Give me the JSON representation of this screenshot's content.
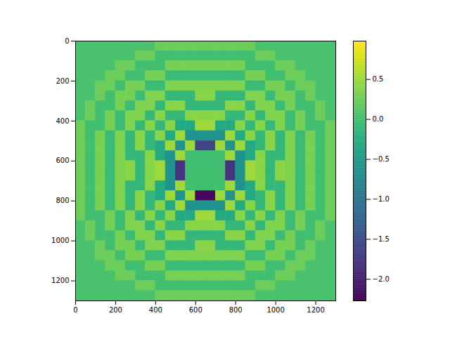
{
  "chart_data": {
    "type": "heatmap",
    "color": "viridis",
    "xlim": [
      0,
      1300
    ],
    "ylim": [
      1300,
      0
    ],
    "xticks": [
      0,
      200,
      400,
      600,
      800,
      1000,
      1200
    ],
    "yticks": [
      0,
      200,
      400,
      600,
      800,
      1000,
      1200
    ],
    "colorbar": {
      "range": [
        -2.27,
        0.98
      ],
      "ticks": [
        {
          "value": -2,
          "label": "−2.0"
        },
        {
          "value": -1.5,
          "label": "−1.5"
        },
        {
          "value": -1,
          "label": "−1.0"
        },
        {
          "value": -0.5,
          "label": "−0.5"
        },
        {
          "value": 0,
          "label": "0.0"
        },
        0.5
      ]
    },
    "cells": [
      [
        0.05,
        0.05,
        0.05,
        0.05,
        0.05,
        0.05,
        0.05,
        0.05,
        0.25,
        0.25,
        0.25,
        0.25,
        0.25,
        0.25,
        0.25,
        0.25,
        0.25,
        0.25,
        0.05,
        0.05,
        0.05,
        0.05,
        0.05,
        0.05,
        0.05,
        0.05
      ],
      [
        0.05,
        0.05,
        0.05,
        0.05,
        0.05,
        0.05,
        0.25,
        0.25,
        0,
        0,
        0,
        0,
        0,
        0,
        0,
        0,
        0,
        0,
        0.25,
        0.25,
        0.05,
        0.05,
        0.05,
        0.05,
        0.05,
        0.05
      ],
      [
        0.05,
        0.05,
        0.05,
        0.05,
        0.25,
        0.25,
        0,
        0,
        0,
        0.3,
        0.3,
        0.3,
        0.3,
        0.3,
        0.3,
        0.3,
        0.3,
        0,
        0,
        0,
        0.25,
        0.25,
        0.05,
        0.05,
        0.05,
        0.05
      ],
      [
        0.05,
        0.05,
        0.05,
        0.25,
        0.25,
        0,
        0,
        0.3,
        0.3,
        -0.05,
        -0.05,
        -0.05,
        -0.05,
        -0.05,
        -0.05,
        -0.05,
        -0.05,
        0.3,
        0.3,
        0,
        0,
        0.25,
        0.25,
        0.05,
        0.05,
        0.05
      ],
      [
        0.05,
        0.05,
        0.25,
        0.25,
        0,
        0.3,
        0.3,
        -0.05,
        -0.05,
        0.35,
        0.35,
        0.35,
        0.35,
        0.35,
        0.35,
        0.35,
        0.35,
        -0.05,
        -0.05,
        0.3,
        0.3,
        0,
        0.25,
        0.25,
        0.05,
        0.05
      ],
      [
        0.05,
        0.05,
        0.25,
        0,
        0.3,
        0.3,
        -0.05,
        0.35,
        0.35,
        -0.1,
        -0.1,
        -0.1,
        0.4,
        0.4,
        -0.1,
        -0.1,
        -0.1,
        0.35,
        0.35,
        -0.05,
        0.3,
        0.3,
        0,
        0.25,
        0.05,
        0.05
      ],
      [
        0.05,
        0.25,
        0,
        0,
        0.3,
        -0.05,
        0.35,
        0.35,
        -0.1,
        0.4,
        0.4,
        -0.1,
        -0.1,
        -0.1,
        -0.1,
        0.4,
        0.4,
        -0.1,
        0.35,
        0.35,
        -0.05,
        0.3,
        0,
        0,
        0.25,
        0.05
      ],
      [
        0.05,
        0.25,
        0,
        0.3,
        -0.05,
        0.35,
        0.35,
        -0.1,
        0.4,
        -0.1,
        -0.1,
        0.4,
        0.4,
        0.4,
        0.4,
        -0.1,
        -0.1,
        0.4,
        -0.1,
        0.35,
        0.35,
        -0.05,
        0.3,
        0,
        0.25,
        0.05
      ],
      [
        0.25,
        0,
        0,
        0.3,
        -0.05,
        0.35,
        -0.1,
        0.4,
        -0.1,
        0.4,
        -0.3,
        -0.3,
        0.5,
        0.5,
        -0.3,
        -0.3,
        0.4,
        -0.1,
        0.4,
        -0.1,
        0.35,
        -0.05,
        0.3,
        0,
        0,
        0.25
      ],
      [
        0.25,
        0,
        0.3,
        -0.05,
        0.35,
        -0.1,
        0.4,
        -0.1,
        0.4,
        -0.3,
        0.5,
        -0.6,
        -0.6,
        -0.6,
        -0.6,
        0.5,
        -0.3,
        0.4,
        -0.1,
        0.4,
        -0.1,
        0.35,
        -0.05,
        0.3,
        0,
        0.25
      ],
      [
        0.25,
        0,
        0.3,
        -0.05,
        0.35,
        -0.1,
        0.4,
        -0.1,
        -0.3,
        0.5,
        -0.6,
        0.5,
        -1.6,
        -1.6,
        0.5,
        -0.6,
        0.5,
        -0.3,
        -0.1,
        0.4,
        -0.1,
        0.35,
        -0.05,
        0.3,
        0,
        0.25
      ],
      [
        0.25,
        0,
        0.3,
        -0.05,
        0.35,
        -0.1,
        -0.1,
        0.4,
        -0.3,
        -0.6,
        0.5,
        0,
        0,
        0,
        0,
        0.5,
        -0.6,
        -0.3,
        0.4,
        -0.1,
        -0.1,
        0.35,
        -0.05,
        0.3,
        0,
        0.25
      ],
      [
        0.25,
        0,
        0.3,
        -0.05,
        0.35,
        0.4,
        -0.1,
        0.4,
        0.5,
        -0.6,
        -1.8,
        0,
        0,
        0,
        0,
        -1.8,
        -0.6,
        0.5,
        0.4,
        -0.1,
        0.4,
        0.35,
        -0.05,
        0.3,
        0,
        0.25
      ],
      [
        0.25,
        0,
        0.3,
        -0.05,
        0.35,
        0.4,
        -0.1,
        0.4,
        0.5,
        -0.6,
        -1.8,
        0,
        0,
        0,
        0,
        -1.8,
        -0.6,
        0.5,
        0.4,
        -0.1,
        0.4,
        0.35,
        -0.05,
        0.3,
        0,
        0.25
      ],
      [
        0.25,
        0,
        0.3,
        -0.05,
        0.35,
        -0.1,
        -0.1,
        0.4,
        -0.3,
        -0.6,
        0.5,
        0,
        0,
        0,
        0,
        0.5,
        -0.6,
        -0.3,
        0.4,
        -0.1,
        -0.1,
        0.35,
        -0.05,
        0.3,
        0,
        0.25
      ],
      [
        0.25,
        0,
        0.3,
        -0.05,
        0.35,
        -0.1,
        0.4,
        -0.1,
        -0.3,
        0.5,
        -0.6,
        0.5,
        -2.2,
        -2.2,
        0.5,
        -0.6,
        0.5,
        -0.3,
        -0.1,
        0.4,
        -0.1,
        0.35,
        -0.05,
        0.3,
        0,
        0.25
      ],
      [
        0.25,
        0,
        0.3,
        -0.05,
        0.35,
        -0.1,
        0.4,
        -0.1,
        0.4,
        -0.3,
        0.5,
        -0.6,
        -0.6,
        -0.6,
        -0.6,
        0.5,
        -0.3,
        0.4,
        -0.1,
        0.4,
        -0.1,
        0.35,
        -0.05,
        0.3,
        0,
        0.25
      ],
      [
        0.25,
        0,
        0,
        0.3,
        -0.05,
        0.35,
        -0.1,
        0.4,
        -0.1,
        0.4,
        -0.3,
        -0.3,
        0.5,
        0.5,
        -0.3,
        -0.3,
        0.4,
        -0.1,
        0.4,
        -0.1,
        0.35,
        -0.05,
        0.3,
        0,
        0,
        0.25
      ],
      [
        0.05,
        0.25,
        0,
        0.3,
        -0.05,
        0.35,
        0.35,
        -0.1,
        0.4,
        -0.1,
        -0.1,
        0.4,
        0.4,
        0.4,
        0.4,
        -0.1,
        -0.1,
        0.4,
        -0.1,
        0.35,
        0.35,
        -0.05,
        0.3,
        0,
        0.25,
        0.05
      ],
      [
        0.05,
        0.25,
        0,
        0,
        0.3,
        -0.05,
        0.35,
        0.35,
        -0.1,
        0.4,
        0.4,
        -0.1,
        -0.1,
        -0.1,
        -0.1,
        0.4,
        0.4,
        -0.1,
        0.35,
        0.35,
        -0.05,
        0.3,
        0,
        0,
        0.25,
        0.05
      ],
      [
        0.05,
        0.05,
        0.25,
        0,
        0.3,
        0.3,
        -0.05,
        0.35,
        0.35,
        -0.1,
        -0.1,
        -0.1,
        0.4,
        0.4,
        -0.1,
        -0.1,
        -0.1,
        0.35,
        0.35,
        -0.05,
        0.3,
        0.3,
        0,
        0.25,
        0.05,
        0.05
      ],
      [
        0.05,
        0.05,
        0.25,
        0.25,
        0,
        0.3,
        0.3,
        -0.05,
        -0.05,
        0.35,
        0.35,
        0.35,
        0.35,
        0.35,
        0.35,
        0.35,
        0.35,
        -0.05,
        -0.05,
        0.3,
        0.3,
        0,
        0.25,
        0.25,
        0.05,
        0.05
      ],
      [
        0.05,
        0.05,
        0.05,
        0.25,
        0.25,
        0,
        0,
        0.3,
        0.3,
        -0.05,
        -0.05,
        -0.05,
        -0.05,
        -0.05,
        -0.05,
        -0.05,
        -0.05,
        0.3,
        0.3,
        0,
        0,
        0.25,
        0.25,
        0.05,
        0.05,
        0.05
      ],
      [
        0.05,
        0.05,
        0.05,
        0.05,
        0.25,
        0.25,
        0,
        0,
        0,
        0.3,
        0.3,
        0.3,
        0.3,
        0.3,
        0.3,
        0.3,
        0.3,
        0,
        0,
        0,
        0.25,
        0.25,
        0.05,
        0.05,
        0.05,
        0.05
      ],
      [
        0.05,
        0.05,
        0.05,
        0.05,
        0.05,
        0.05,
        0.25,
        0.25,
        0,
        0,
        0,
        0,
        0,
        0,
        0,
        0,
        0,
        0,
        0.25,
        0.25,
        0.05,
        0.05,
        0.05,
        0.05,
        0.05,
        0.05
      ],
      [
        0.05,
        0.05,
        0.05,
        0.05,
        0.05,
        0.05,
        0.05,
        0.05,
        0.25,
        0.25,
        0.25,
        0.25,
        0.25,
        0.25,
        0.25,
        0.25,
        0.25,
        0.25,
        0.05,
        0.05,
        0.05,
        0.05,
        0.05,
        0.05,
        0.05,
        0.05
      ]
    ]
  }
}
